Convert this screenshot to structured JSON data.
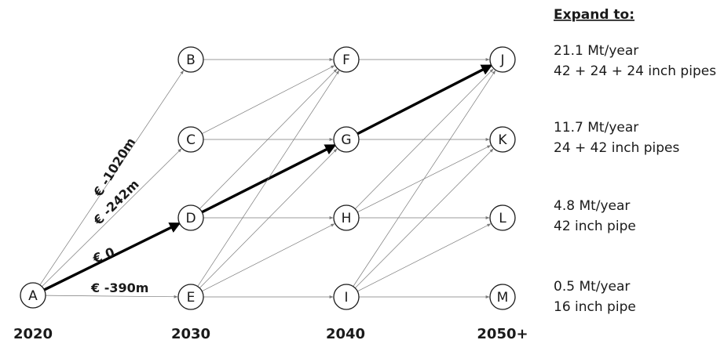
{
  "nodes": [
    {
      "id": "A",
      "label": "A"
    },
    {
      "id": "B",
      "label": "B"
    },
    {
      "id": "C",
      "label": "C"
    },
    {
      "id": "D",
      "label": "D"
    },
    {
      "id": "E",
      "label": "E"
    },
    {
      "id": "F",
      "label": "F"
    },
    {
      "id": "G",
      "label": "G"
    },
    {
      "id": "H",
      "label": "H"
    },
    {
      "id": "I",
      "label": "I"
    },
    {
      "id": "J",
      "label": "J"
    },
    {
      "id": "K",
      "label": "K"
    },
    {
      "id": "L",
      "label": "L"
    },
    {
      "id": "M",
      "label": "M"
    }
  ],
  "years": [
    "2020",
    "2030",
    "2040",
    "2050+"
  ],
  "edges": [
    {
      "from": "A",
      "to": "B"
    },
    {
      "from": "A",
      "to": "C"
    },
    {
      "from": "A",
      "to": "D",
      "bold": true
    },
    {
      "from": "A",
      "to": "E"
    },
    {
      "from": "B",
      "to": "F"
    },
    {
      "from": "C",
      "to": "F"
    },
    {
      "from": "C",
      "to": "G"
    },
    {
      "from": "D",
      "to": "F"
    },
    {
      "from": "D",
      "to": "G",
      "bold": true
    },
    {
      "from": "D",
      "to": "H"
    },
    {
      "from": "E",
      "to": "F"
    },
    {
      "from": "E",
      "to": "G"
    },
    {
      "from": "E",
      "to": "H"
    },
    {
      "from": "E",
      "to": "I"
    },
    {
      "from": "F",
      "to": "J"
    },
    {
      "from": "G",
      "to": "J",
      "bold": true
    },
    {
      "from": "G",
      "to": "K"
    },
    {
      "from": "H",
      "to": "J"
    },
    {
      "from": "H",
      "to": "K"
    },
    {
      "from": "H",
      "to": "L"
    },
    {
      "from": "I",
      "to": "J"
    },
    {
      "from": "I",
      "to": "K"
    },
    {
      "from": "I",
      "to": "L"
    },
    {
      "from": "I",
      "to": "M"
    }
  ],
  "costs": {
    "a_b": "€ -1020m",
    "a_c": "€ -242m",
    "a_d": "€ 0",
    "a_e": "€ -390m"
  },
  "expansion": {
    "title": "Expand to:",
    "options": [
      {
        "capacity": "21.1 Mt/year",
        "pipes": "42 + 24 + 24 inch pipes"
      },
      {
        "capacity": "11.7 Mt/year",
        "pipes": "24 + 42 inch pipes"
      },
      {
        "capacity": "4.8 Mt/year",
        "pipes": "42 inch pipe"
      },
      {
        "capacity": "0.5 Mt/year",
        "pipes": "16 inch pipe"
      }
    ]
  }
}
